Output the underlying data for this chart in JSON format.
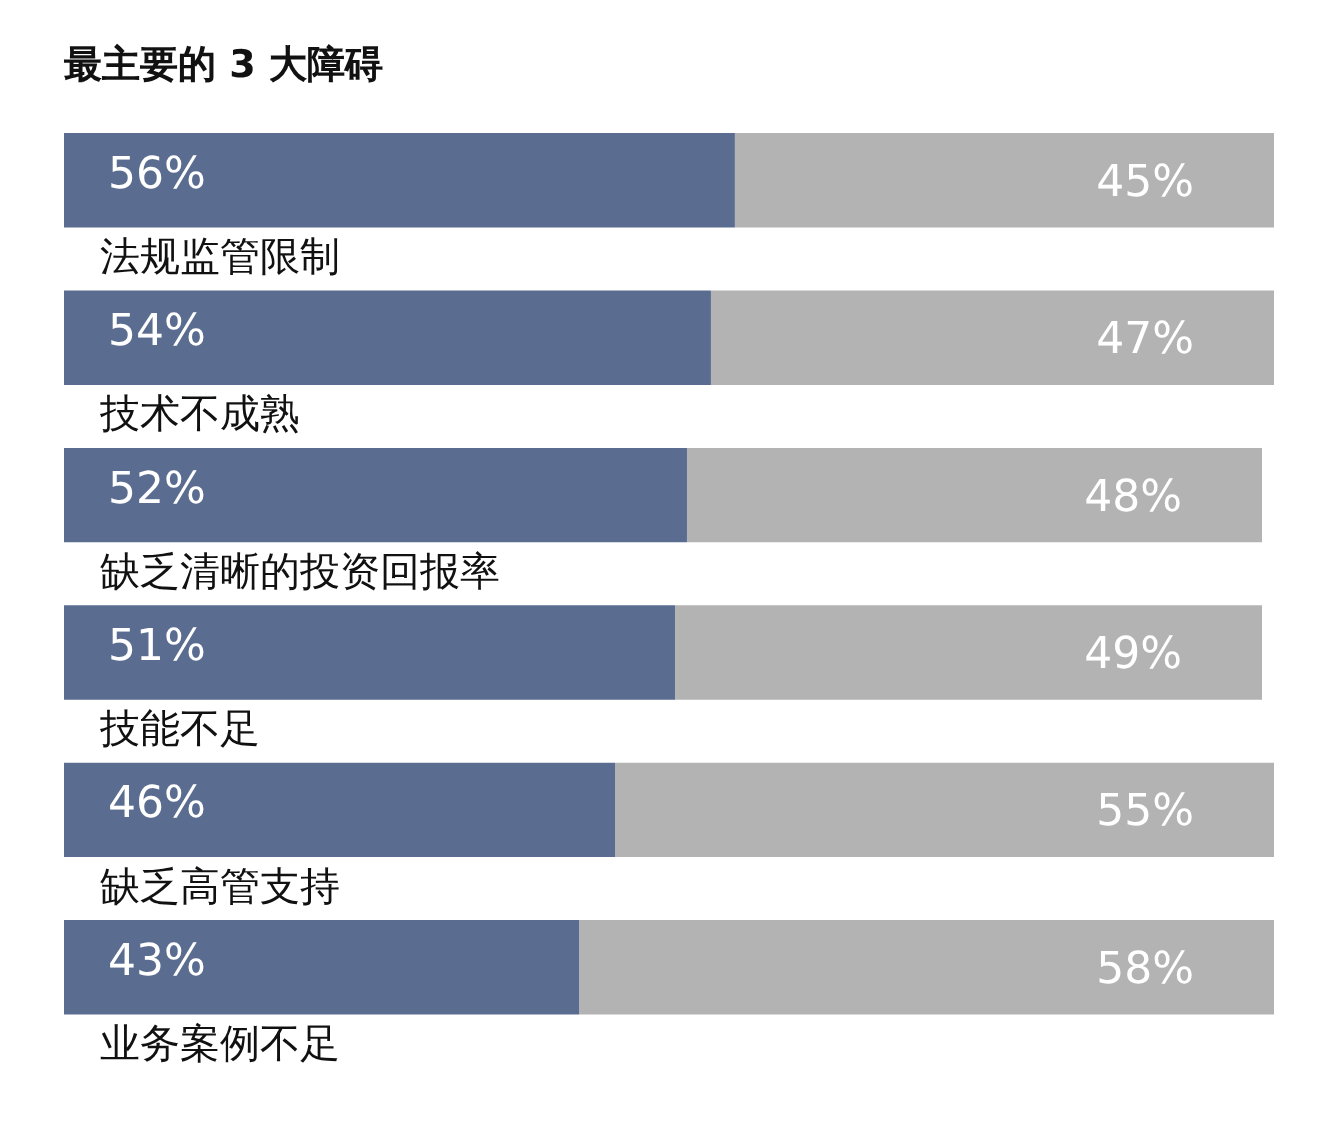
{
  "chart_data": {
    "type": "bar",
    "orientation": "horizontal",
    "stacked": true,
    "title": "最主要的 3 大障碍",
    "categories": [
      "法规监管限制",
      "技术不成熟",
      "缺乏清晰的投资回报率",
      "技能不足",
      "缺乏高管支持",
      "业务案例不足"
    ],
    "series": [
      {
        "color": "#5a6d91",
        "values": [
          56,
          54,
          52,
          51,
          46,
          43
        ],
        "value_labels": [
          "56%",
          "54%",
          "52%",
          "51%",
          "46%",
          "43%"
        ]
      },
      {
        "color": "#b3b3b3",
        "values": [
          45,
          47,
          48,
          49,
          55,
          58
        ],
        "value_labels": [
          "45%",
          "47%",
          "48%",
          "49%",
          "55%",
          "58%"
        ]
      }
    ],
    "tick_labels": false
  }
}
